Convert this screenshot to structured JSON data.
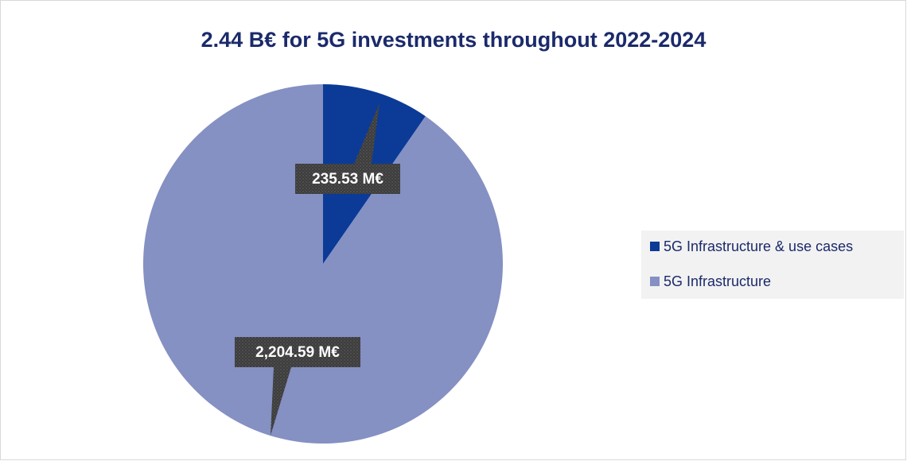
{
  "chart_data": {
    "type": "pie",
    "title": "2.44 B€ for 5G investments throughout 2022-2024",
    "categories": [
      "5G Infrastructure & use cases",
      "5G Infrastructure"
    ],
    "values": [
      235.53,
      2204.59
    ],
    "value_labels": [
      "235.53 M€",
      "2,204.59 M€"
    ],
    "colors": [
      "#0b3b96",
      "#8590c3"
    ],
    "legend": "right"
  }
}
